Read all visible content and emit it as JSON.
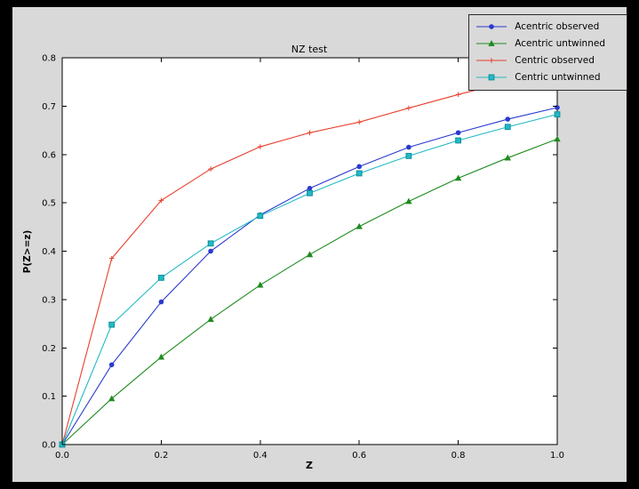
{
  "window": {
    "bg": "#000000",
    "figure_bg": "#d9d9d9",
    "plot_bg": "#ffffff",
    "axis_color": "#000000"
  },
  "chart_data": {
    "type": "line",
    "title": "NZ test",
    "xlabel": "Z",
    "ylabel": "P(Z>=z)",
    "xlim": [
      0.0,
      1.0
    ],
    "ylim": [
      0.0,
      0.8
    ],
    "grid": false,
    "legend_position": "top-right",
    "xticks": [
      0.0,
      0.2,
      0.4,
      0.6,
      0.8,
      1.0
    ],
    "xtick_labels": [
      "0.0",
      "0.2",
      "0.4",
      "0.6",
      "0.8",
      "1.0"
    ],
    "yticks": [
      0.0,
      0.1,
      0.2,
      0.3,
      0.4,
      0.5,
      0.6,
      0.7,
      0.8
    ],
    "ytick_labels": [
      "0.0",
      "0.1",
      "0.2",
      "0.3",
      "0.4",
      "0.5",
      "0.6",
      "0.7",
      "0.8"
    ],
    "x": [
      0.0,
      0.1,
      0.2,
      0.3,
      0.4,
      0.5,
      0.6,
      0.7,
      0.8,
      0.9,
      1.0
    ],
    "series": [
      {
        "name": "Acentric observed",
        "color": "#2a39cf",
        "marker": "circle",
        "values": [
          0.0,
          0.165,
          0.295,
          0.4,
          0.475,
          0.53,
          0.575,
          0.615,
          0.645,
          0.673,
          0.697
        ]
      },
      {
        "name": "Acentric untwinned",
        "color": "#1e8b1e",
        "marker": "triangle",
        "values": [
          0.0,
          0.095,
          0.181,
          0.259,
          0.33,
          0.393,
          0.451,
          0.503,
          0.551,
          0.593,
          0.632
        ]
      },
      {
        "name": "Centric observed",
        "color": "#e8402d",
        "marker": "plus",
        "values": [
          0.0,
          0.385,
          0.505,
          0.57,
          0.616,
          0.645,
          0.667,
          0.696,
          0.724,
          0.75,
          0.775
        ]
      },
      {
        "name": "Centric untwinned",
        "color": "#22bac5",
        "marker": "square",
        "marker_edge": "#0f8f9b",
        "values": [
          0.0,
          0.248,
          0.345,
          0.416,
          0.473,
          0.52,
          0.561,
          0.597,
          0.629,
          0.657,
          0.683
        ]
      }
    ]
  }
}
